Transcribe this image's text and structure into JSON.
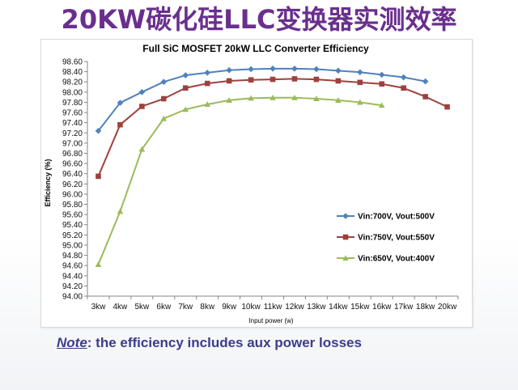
{
  "slide": {
    "title": "20KW碳化硅LLC变换器实测效率",
    "note_prefix": "Note",
    "note_rest": ": the efficiency includes aux power losses"
  },
  "colors": {
    "title": "#6a2f8e",
    "note": "#3c3c8c",
    "series_700": "#4f81bd",
    "series_750": "#9e413e",
    "series_650": "#9bbb59"
  },
  "chart_data": {
    "type": "line",
    "title": "Full SiC MOSFET 20kW LLC Converter Efficiency",
    "xlabel": "Input power (w)",
    "ylabel": "Efficiency (%)",
    "categories": [
      "3kw",
      "4kw",
      "5kw",
      "6kw",
      "7kw",
      "8kw",
      "9kw",
      "10kw",
      "11kw",
      "12kw",
      "13kw",
      "14kw",
      "15kw",
      "16kw",
      "17kw",
      "18kw",
      "20kw"
    ],
    "ylim": [
      94.0,
      98.6
    ],
    "ytick_step": 0.2,
    "grid": false,
    "legend_position": "inside-right",
    "series": [
      {
        "name": "Vin:700V, Vout:500V",
        "color": "#4f81bd",
        "marker": "diamond",
        "values": [
          97.24,
          97.79,
          98.0,
          98.2,
          98.33,
          98.38,
          98.43,
          98.45,
          98.46,
          98.46,
          98.45,
          98.42,
          98.39,
          98.34,
          98.29,
          98.21,
          null
        ]
      },
      {
        "name": "Vin:750V, Vout:550V",
        "color": "#9e413e",
        "marker": "square",
        "values": [
          96.35,
          97.36,
          97.72,
          97.87,
          98.08,
          98.17,
          98.22,
          98.24,
          98.25,
          98.26,
          98.25,
          98.22,
          98.19,
          98.16,
          98.08,
          97.91,
          97.71
        ]
      },
      {
        "name": "Vin:650V, Vout:400V",
        "color": "#9bbb59",
        "marker": "triangle",
        "values": [
          94.62,
          95.66,
          96.88,
          97.48,
          97.66,
          97.76,
          97.84,
          97.88,
          97.89,
          97.89,
          97.87,
          97.84,
          97.8,
          97.74,
          null,
          null,
          null
        ]
      }
    ]
  }
}
